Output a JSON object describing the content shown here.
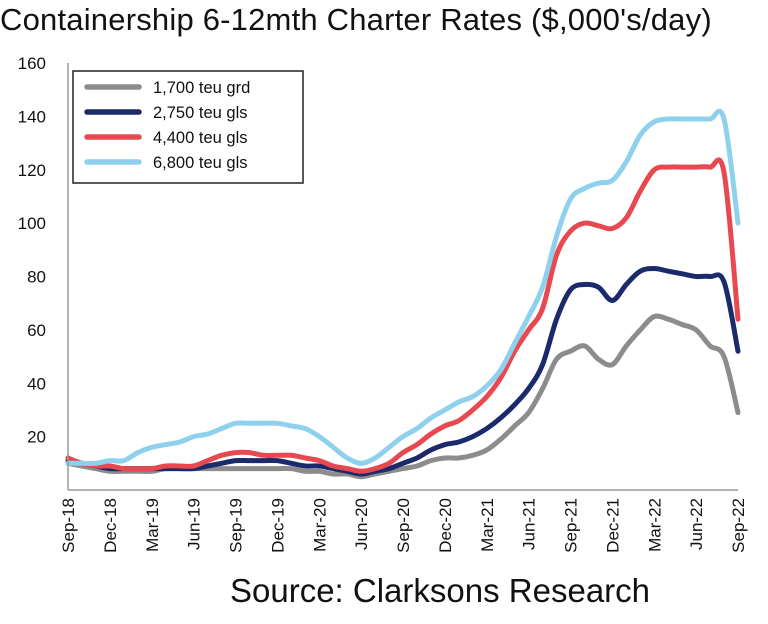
{
  "chart_data": {
    "type": "line",
    "title": "Containership 6-12mth Charter Rates ($,000's/day)",
    "source": "Source: Clarksons Research",
    "xlabel": "",
    "ylabel": "",
    "ylim": [
      0,
      160
    ],
    "yticks": [
      20,
      40,
      60,
      80,
      100,
      120,
      140,
      160
    ],
    "grid": false,
    "legend_position": "top-left",
    "x": [
      "Sep-18",
      "Oct-18",
      "Nov-18",
      "Dec-18",
      "Jan-19",
      "Feb-19",
      "Mar-19",
      "Apr-19",
      "May-19",
      "Jun-19",
      "Jul-19",
      "Aug-19",
      "Sep-19",
      "Oct-19",
      "Nov-19",
      "Dec-19",
      "Jan-20",
      "Feb-20",
      "Mar-20",
      "Apr-20",
      "May-20",
      "Jun-20",
      "Jul-20",
      "Aug-20",
      "Sep-20",
      "Oct-20",
      "Nov-20",
      "Dec-20",
      "Jan-21",
      "Feb-21",
      "Mar-21",
      "Apr-21",
      "May-21",
      "Jun-21",
      "Jul-21",
      "Aug-21",
      "Sep-21",
      "Oct-21",
      "Nov-21",
      "Dec-21",
      "Jan-22",
      "Feb-22",
      "Mar-22",
      "Apr-22",
      "May-22",
      "Jun-22",
      "Jul-22",
      "Aug-22",
      "Sep-22"
    ],
    "x_tick_labels": [
      "Sep-18",
      "Dec-18",
      "Mar-19",
      "Jun-19",
      "Sep-19",
      "Dec-19",
      "Mar-20",
      "Jun-20",
      "Sep-20",
      "Dec-20",
      "Mar-21",
      "Jun-21",
      "Sep-21",
      "Dec-21",
      "Mar-22",
      "Jun-22",
      "Sep-22"
    ],
    "series": [
      {
        "name": "1,700 teu grd",
        "color": "#8c8c8c",
        "values": [
          10,
          9,
          8,
          7,
          7,
          7,
          7,
          8,
          8,
          8,
          8,
          8,
          8,
          8,
          8,
          8,
          8,
          7,
          7,
          6,
          6,
          5,
          6,
          7,
          8,
          9,
          11,
          12,
          12,
          13,
          15,
          19,
          24,
          29,
          38,
          49,
          52,
          54,
          49,
          47,
          54,
          60,
          65,
          64,
          62,
          60,
          54,
          50,
          29
        ]
      },
      {
        "name": "2,750 teu gls",
        "color": "#1b2a6b",
        "values": [
          11,
          10,
          9,
          8,
          8,
          8,
          8,
          8,
          8,
          8,
          9,
          10,
          11,
          11,
          11,
          11,
          10,
          9,
          9,
          8,
          7,
          6,
          7,
          8,
          10,
          12,
          15,
          17,
          18,
          20,
          23,
          27,
          32,
          38,
          47,
          64,
          75,
          77,
          76,
          71,
          77,
          82,
          83,
          82,
          81,
          80,
          80,
          78,
          52
        ]
      },
      {
        "name": "4,400 teu gls",
        "color": "#e8484f",
        "values": [
          12,
          10,
          9,
          9,
          8,
          8,
          8,
          9,
          9,
          9,
          11,
          13,
          14,
          14,
          13,
          13,
          13,
          12,
          11,
          9,
          8,
          7,
          8,
          10,
          14,
          17,
          21,
          24,
          26,
          30,
          35,
          42,
          52,
          60,
          68,
          88,
          97,
          100,
          99,
          98,
          102,
          112,
          120,
          121,
          121,
          121,
          121,
          119,
          64
        ]
      },
      {
        "name": "6,800 teu gls",
        "color": "#8fd1ec",
        "values": [
          10,
          10,
          10,
          11,
          11,
          14,
          16,
          17,
          18,
          20,
          21,
          23,
          25,
          25,
          25,
          25,
          24,
          23,
          20,
          16,
          12,
          10,
          12,
          16,
          20,
          23,
          27,
          30,
          33,
          35,
          39,
          45,
          55,
          65,
          76,
          95,
          109,
          113,
          115,
          116,
          123,
          133,
          138,
          139,
          139,
          139,
          139,
          139,
          100
        ]
      }
    ]
  }
}
